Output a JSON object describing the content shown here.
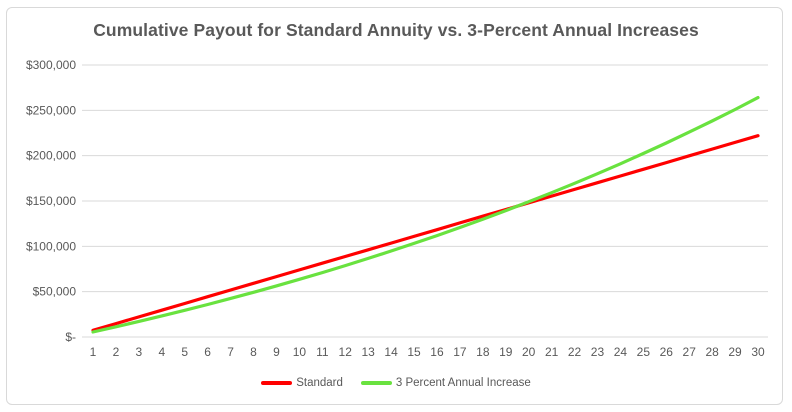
{
  "colors": {
    "title_text": "#595959",
    "axis_text": "#595959",
    "gridline": "#d9d9d9",
    "axis_line": "#d9d9d9",
    "frame_border": "#d9d9d9",
    "background": "#ffffff",
    "standard_series": "#ff0000",
    "increase_series": "#69e23f"
  },
  "chart_data": {
    "type": "line",
    "title": "Cumulative Payout for Standard Annuity vs. 3-Percent Annual Increases",
    "xlabel": "",
    "ylabel": "",
    "x": [
      1,
      2,
      3,
      4,
      5,
      6,
      7,
      8,
      9,
      10,
      11,
      12,
      13,
      14,
      15,
      16,
      17,
      18,
      19,
      20,
      21,
      22,
      23,
      24,
      25,
      26,
      27,
      28,
      29,
      30
    ],
    "ylim": [
      0,
      300000
    ],
    "y_tick_step": 50000,
    "y_tick_labels": [
      "$-",
      "$50,000",
      "$100,000",
      "$150,000",
      "$200,000",
      "$250,000",
      "$300,000"
    ],
    "grid": true,
    "legend_position": "bottom",
    "series": [
      {
        "name": "Standard",
        "color": "#ff0000",
        "values": [
          7400,
          14800,
          22200,
          29600,
          37000,
          44400,
          51800,
          59200,
          66600,
          74000,
          81400,
          88800,
          96200,
          103600,
          111000,
          118400,
          125800,
          133200,
          140600,
          148000,
          155400,
          162800,
          170200,
          177600,
          185000,
          192400,
          199800,
          207200,
          214600,
          222000
        ]
      },
      {
        "name": "3 Percent Annual Increase",
        "color": "#69e23f",
        "values": [
          5550,
          11267,
          17155,
          23219,
          29466,
          35900,
          42527,
          49352,
          56383,
          63625,
          71083,
          78766,
          86679,
          94829,
          103224,
          111871,
          120777,
          129950,
          139399,
          149131,
          159154,
          169479,
          180114,
          191067,
          202349,
          213969,
          225938,
          238267,
          250965,
          264044
        ]
      }
    ]
  }
}
